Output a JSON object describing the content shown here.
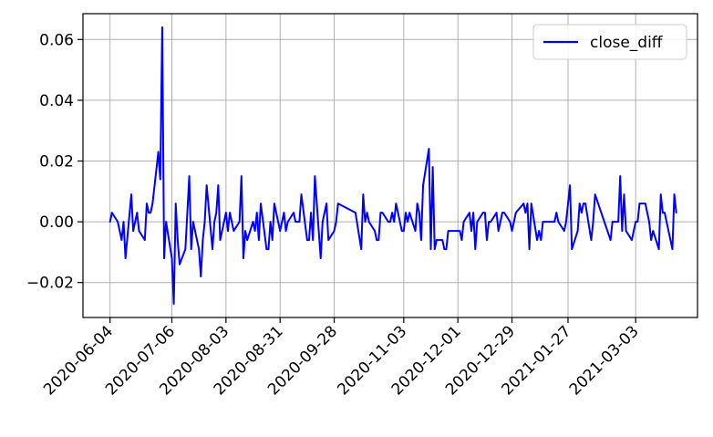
{
  "chart_data": {
    "type": "line",
    "x_dates": [
      "2020-06-04",
      "2020-06-05",
      "2020-06-08",
      "2020-06-09",
      "2020-06-10",
      "2020-06-11",
      "2020-06-12",
      "2020-06-15",
      "2020-06-16",
      "2020-06-17",
      "2020-06-18",
      "2020-06-19",
      "2020-06-22",
      "2020-06-23",
      "2020-06-24",
      "2020-06-25",
      "2020-06-26",
      "2020-06-29",
      "2020-06-30",
      "2020-07-01",
      "2020-07-02",
      "2020-07-03",
      "2020-07-06",
      "2020-07-07",
      "2020-07-08",
      "2020-07-09",
      "2020-07-10",
      "2020-07-13",
      "2020-07-14",
      "2020-07-15",
      "2020-07-16",
      "2020-07-17",
      "2020-07-20",
      "2020-07-21",
      "2020-07-22",
      "2020-07-23",
      "2020-07-24",
      "2020-07-27",
      "2020-07-28",
      "2020-07-29",
      "2020-07-30",
      "2020-07-31",
      "2020-08-03",
      "2020-08-04",
      "2020-08-05",
      "2020-08-06",
      "2020-08-07",
      "2020-08-10",
      "2020-08-11",
      "2020-08-12",
      "2020-08-13",
      "2020-08-14",
      "2020-08-17",
      "2020-08-18",
      "2020-08-19",
      "2020-08-20",
      "2020-08-21",
      "2020-08-24",
      "2020-08-25",
      "2020-08-26",
      "2020-08-27",
      "2020-08-28",
      "2020-08-31",
      "2020-09-01",
      "2020-09-02",
      "2020-09-03",
      "2020-09-04",
      "2020-09-07",
      "2020-09-08",
      "2020-09-09",
      "2020-09-10",
      "2020-09-11",
      "2020-09-14",
      "2020-09-15",
      "2020-09-16",
      "2020-09-17",
      "2020-09-18",
      "2020-09-21",
      "2020-09-22",
      "2020-09-23",
      "2020-09-24",
      "2020-09-25",
      "2020-09-28",
      "2020-09-29",
      "2020-09-30",
      "2020-10-09",
      "2020-10-12",
      "2020-10-13",
      "2020-10-14",
      "2020-10-15",
      "2020-10-16",
      "2020-10-19",
      "2020-10-20",
      "2020-10-21",
      "2020-10-22",
      "2020-10-23",
      "2020-10-26",
      "2020-10-27",
      "2020-10-28",
      "2020-10-29",
      "2020-10-30",
      "2020-11-02",
      "2020-11-03",
      "2020-11-04",
      "2020-11-05",
      "2020-11-06",
      "2020-11-09",
      "2020-11-10",
      "2020-11-11",
      "2020-11-12",
      "2020-11-13",
      "2020-11-16",
      "2020-11-17",
      "2020-11-18",
      "2020-11-19",
      "2020-11-20",
      "2020-11-23",
      "2020-11-24",
      "2020-11-25",
      "2020-11-26",
      "2020-11-27",
      "2020-11-30",
      "2020-12-01",
      "2020-12-02",
      "2020-12-03",
      "2020-12-04",
      "2020-12-07",
      "2020-12-08",
      "2020-12-09",
      "2020-12-10",
      "2020-12-11",
      "2020-12-14",
      "2020-12-15",
      "2020-12-16",
      "2020-12-17",
      "2020-12-18",
      "2020-12-21",
      "2020-12-22",
      "2020-12-23",
      "2020-12-24",
      "2020-12-25",
      "2020-12-28",
      "2020-12-29",
      "2020-12-30",
      "2020-12-31",
      "2021-01-04",
      "2021-01-05",
      "2021-01-06",
      "2021-01-07",
      "2021-01-08",
      "2021-01-11",
      "2021-01-12",
      "2021-01-13",
      "2021-01-14",
      "2021-01-15",
      "2021-01-18",
      "2021-01-19",
      "2021-01-20",
      "2021-01-21",
      "2021-01-22",
      "2021-01-25",
      "2021-01-26",
      "2021-01-27",
      "2021-01-28",
      "2021-01-29",
      "2021-02-01",
      "2021-02-02",
      "2021-02-03",
      "2021-02-04",
      "2021-02-05",
      "2021-02-08",
      "2021-02-09",
      "2021-02-10",
      "2021-02-18",
      "2021-02-19",
      "2021-02-22",
      "2021-02-23",
      "2021-02-24",
      "2021-02-25",
      "2021-02-26",
      "2021-03-01",
      "2021-03-02",
      "2021-03-03",
      "2021-03-04",
      "2021-03-05",
      "2021-03-08",
      "2021-03-09",
      "2021-03-10",
      "2021-03-11",
      "2021-03-12",
      "2021-03-15",
      "2021-03-16",
      "2021-03-17",
      "2021-03-18",
      "2021-03-19",
      "2021-03-22",
      "2021-03-23",
      "2021-03-24",
      "2021-03-25",
      "2021-03-26"
    ],
    "series": [
      {
        "name": "close_diff",
        "color": "#0000ff",
        "values": [
          0.0,
          0.003,
          0.0,
          -0.003,
          -0.006,
          0.0,
          -0.012,
          0.009,
          -0.003,
          0.0,
          0.003,
          -0.003,
          -0.006,
          0.006,
          0.003,
          0.003,
          0.006,
          0.023,
          0.014,
          0.064,
          -0.012,
          0.0,
          -0.012,
          -0.027,
          0.006,
          -0.006,
          -0.014,
          -0.009,
          0.003,
          0.015,
          -0.009,
          0.0,
          -0.009,
          -0.018,
          -0.006,
          0.0,
          0.012,
          -0.009,
          0.0,
          0.003,
          0.012,
          -0.006,
          0.003,
          -0.003,
          0.003,
          0.0,
          -0.003,
          0.0,
          0.015,
          -0.012,
          -0.003,
          -0.006,
          0.0,
          -0.003,
          0.003,
          -0.006,
          0.006,
          -0.009,
          -0.009,
          0.0,
          -0.006,
          0.006,
          -0.003,
          0.0,
          0.003,
          -0.003,
          0.0,
          0.003,
          0.0,
          0.0,
          0.0,
          0.009,
          -0.006,
          -0.006,
          0.003,
          -0.006,
          0.015,
          -0.012,
          0.0,
          0.003,
          0.006,
          -0.006,
          -0.003,
          0.0,
          0.006,
          0.003,
          -0.009,
          0.009,
          0.0,
          0.003,
          0.0,
          -0.003,
          -0.006,
          -0.006,
          0.003,
          0.003,
          0.0,
          0.0,
          0.003,
          0.0,
          0.006,
          -0.003,
          -0.003,
          0.003,
          0.0,
          0.003,
          -0.003,
          0.006,
          0.003,
          -0.006,
          0.012,
          0.024,
          -0.009,
          0.018,
          -0.009,
          -0.006,
          -0.006,
          -0.009,
          -0.009,
          -0.003,
          -0.003,
          -0.003,
          -0.003,
          -0.003,
          -0.006,
          0.0,
          0.003,
          -0.003,
          0.003,
          -0.009,
          0.0,
          0.003,
          0.003,
          -0.006,
          0.0,
          0.0,
          0.003,
          -0.003,
          0.0,
          0.003,
          0.003,
          0.0,
          -0.003,
          0.0,
          0.003,
          0.006,
          0.003,
          0.006,
          -0.009,
          0.006,
          -0.006,
          -0.003,
          -0.006,
          0.0,
          0.0,
          0.0,
          0.0,
          0.0,
          0.003,
          0.0,
          -0.003,
          0.0,
          0.006,
          0.012,
          -0.009,
          -0.003,
          0.006,
          0.003,
          0.006,
          0.006,
          -0.006,
          0.0,
          0.009,
          -0.006,
          0.0,
          0.0,
          0.015,
          -0.003,
          0.009,
          -0.003,
          -0.006,
          -0.003,
          0.0,
          0.0,
          0.006,
          0.006,
          0.003,
          0.0,
          -0.006,
          -0.003,
          -0.009,
          0.009,
          0.003,
          0.003,
          0.0,
          -0.009,
          0.009,
          0.003
        ]
      }
    ],
    "x_ticks": [
      "2020-06-04",
      "2020-07-06",
      "2020-08-03",
      "2020-08-31",
      "2020-09-28",
      "2020-11-03",
      "2020-12-01",
      "2020-12-29",
      "2021-01-27",
      "2021-03-03"
    ],
    "y_ticks": [
      -0.02,
      0.0,
      0.02,
      0.04,
      0.06
    ],
    "y_tick_labels": [
      "−0.02",
      "0.00",
      "0.02",
      "0.04",
      "0.06"
    ],
    "ylim": [
      -0.0315,
      0.0685
    ],
    "xlim": [
      "2020-05-21",
      "2021-04-04"
    ],
    "grid": true,
    "legend": {
      "placement": "top-right",
      "entries": [
        "close_diff"
      ]
    },
    "title": "",
    "xlabel": "",
    "ylabel": ""
  }
}
